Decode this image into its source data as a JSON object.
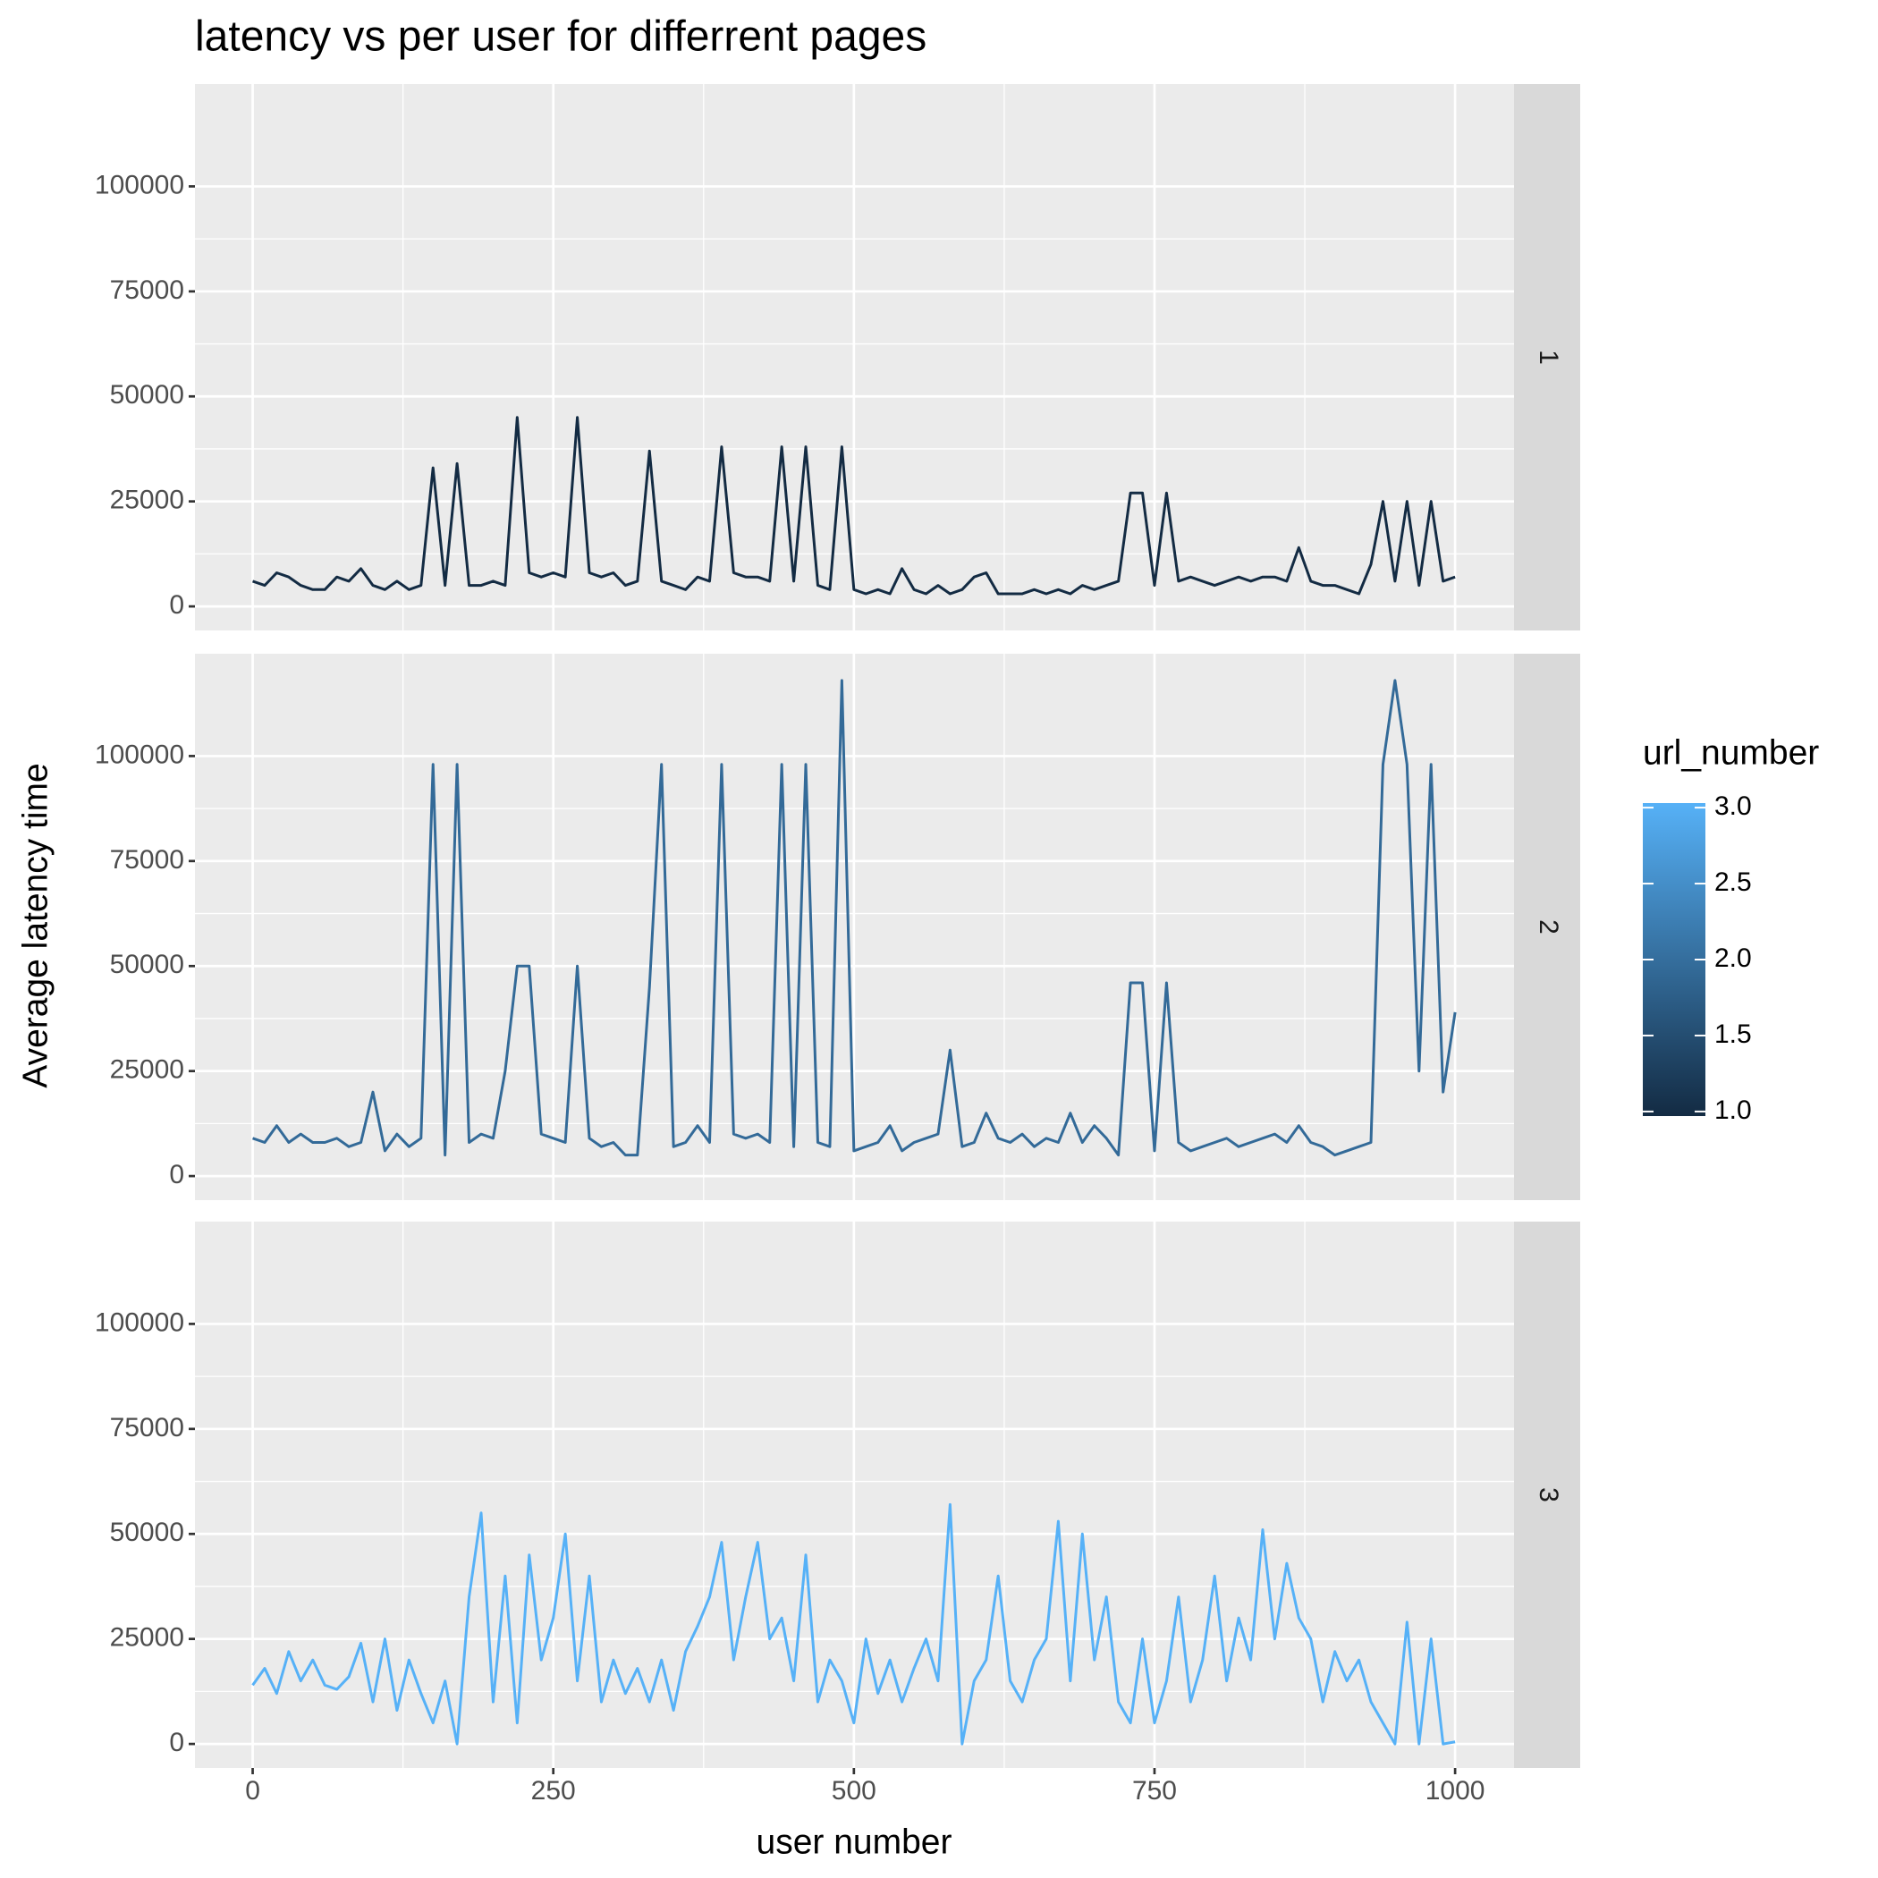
{
  "chart_data": {
    "type": "line",
    "title": "latency vs per user for differrent pages",
    "x_label": "user number",
    "y_label": "Average latency time",
    "x": [
      0,
      10,
      20,
      30,
      40,
      50,
      60,
      70,
      80,
      90,
      100,
      110,
      120,
      130,
      140,
      150,
      160,
      170,
      180,
      190,
      200,
      210,
      220,
      230,
      240,
      250,
      260,
      270,
      280,
      290,
      300,
      310,
      320,
      330,
      340,
      350,
      360,
      370,
      380,
      390,
      400,
      410,
      420,
      430,
      440,
      450,
      460,
      470,
      480,
      490,
      500,
      510,
      520,
      530,
      540,
      550,
      560,
      570,
      580,
      590,
      600,
      610,
      620,
      630,
      640,
      650,
      660,
      670,
      680,
      690,
      700,
      710,
      720,
      730,
      740,
      750,
      760,
      770,
      780,
      790,
      800,
      810,
      820,
      830,
      840,
      850,
      860,
      870,
      880,
      890,
      900,
      910,
      920,
      930,
      940,
      950,
      960,
      970,
      980,
      990,
      1000
    ],
    "series": [
      {
        "name": "1",
        "color": "#132b43",
        "values": [
          6000,
          5000,
          8000,
          7000,
          5000,
          4000,
          4000,
          7000,
          6000,
          9000,
          5000,
          4000,
          6000,
          4000,
          5000,
          33000,
          5000,
          34000,
          5000,
          5000,
          6000,
          5000,
          45000,
          8000,
          7000,
          8000,
          7000,
          45000,
          8000,
          7000,
          8000,
          5000,
          6000,
          37000,
          6000,
          5000,
          4000,
          7000,
          6000,
          38000,
          8000,
          7000,
          7000,
          6000,
          38000,
          6000,
          38000,
          5000,
          4000,
          38000,
          4000,
          3000,
          4000,
          3000,
          9000,
          4000,
          3000,
          5000,
          3000,
          4000,
          7000,
          8000,
          3000,
          3000,
          3000,
          4000,
          3000,
          4000,
          3000,
          5000,
          4000,
          5000,
          6000,
          27000,
          27000,
          5000,
          27000,
          6000,
          7000,
          6000,
          5000,
          6000,
          7000,
          6000,
          7000,
          7000,
          6000,
          14000,
          6000,
          5000,
          5000,
          4000,
          3000,
          10000,
          25000,
          6000,
          25000,
          5000,
          25000,
          6000,
          7000
        ]
      },
      {
        "name": "2",
        "color": "#336a98",
        "values": [
          9000,
          8000,
          12000,
          8000,
          10000,
          8000,
          8000,
          9000,
          7000,
          8000,
          20000,
          6000,
          10000,
          7000,
          9000,
          98000,
          5000,
          98000,
          8000,
          10000,
          9000,
          25000,
          50000,
          50000,
          10000,
          9000,
          8000,
          50000,
          9000,
          7000,
          8000,
          5000,
          5000,
          45000,
          98000,
          7000,
          8000,
          12000,
          8000,
          98000,
          10000,
          9000,
          10000,
          8000,
          98000,
          7000,
          98000,
          8000,
          7000,
          118000,
          6000,
          7000,
          8000,
          12000,
          6000,
          8000,
          9000,
          10000,
          30000,
          7000,
          8000,
          15000,
          9000,
          8000,
          10000,
          7000,
          9000,
          8000,
          15000,
          8000,
          12000,
          9000,
          5000,
          46000,
          46000,
          6000,
          46000,
          8000,
          6000,
          7000,
          8000,
          9000,
          7000,
          8000,
          9000,
          10000,
          8000,
          12000,
          8000,
          7000,
          5000,
          6000,
          7000,
          8000,
          98000,
          118000,
          98000,
          25000,
          98000,
          20000,
          39000
        ]
      },
      {
        "name": "3",
        "color": "#56b1f7",
        "values": [
          14000,
          18000,
          12000,
          22000,
          15000,
          20000,
          14000,
          13000,
          16000,
          24000,
          10000,
          25000,
          8000,
          20000,
          12000,
          5000,
          15000,
          0,
          35000,
          55000,
          10000,
          40000,
          5000,
          45000,
          20000,
          30000,
          50000,
          15000,
          40000,
          10000,
          20000,
          12000,
          18000,
          10000,
          20000,
          8000,
          22000,
          28000,
          35000,
          48000,
          20000,
          35000,
          48000,
          25000,
          30000,
          15000,
          45000,
          10000,
          20000,
          15000,
          5000,
          25000,
          12000,
          20000,
          10000,
          18000,
          25000,
          15000,
          57000,
          0,
          15000,
          20000,
          40000,
          15000,
          10000,
          20000,
          25000,
          53000,
          15000,
          50000,
          20000,
          35000,
          10000,
          5000,
          25000,
          5000,
          15000,
          35000,
          10000,
          20000,
          40000,
          15000,
          30000,
          20000,
          51000,
          25000,
          43000,
          30000,
          25000,
          10000,
          22000,
          15000,
          20000,
          10000,
          5000,
          0,
          29000,
          0,
          25000,
          0,
          500
        ]
      }
    ],
    "xlim": [
      -48,
      1049
    ],
    "ylim": [
      -5730,
      124360
    ],
    "xticks": [
      0,
      250,
      500,
      750,
      1000
    ],
    "yticks": [
      0,
      25000,
      50000,
      75000,
      100000
    ],
    "grid": true,
    "legend": {
      "title": "url_number",
      "position": "right",
      "low_color": "#132b43",
      "high_color": "#56b1f7",
      "lim": [
        0.97,
        3.03
      ],
      "ticks": [
        {
          "value": 1,
          "label": "1.0"
        },
        {
          "value": 1.5,
          "label": "1.5"
        },
        {
          "value": 2,
          "label": "2.0"
        },
        {
          "value": 2.5,
          "label": "2.5"
        },
        {
          "value": 3,
          "label": "3.0"
        }
      ]
    }
  }
}
